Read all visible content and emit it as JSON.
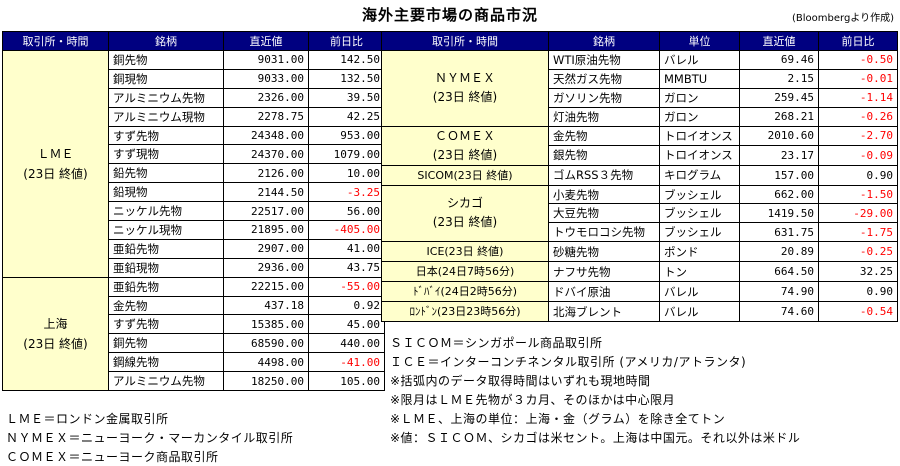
{
  "title": "海外主要市場の商品市況",
  "source": "(Bloombergより作成)",
  "left_headers": [
    "取引所・時間",
    "銘柄",
    "直近値",
    "前日比"
  ],
  "right_headers": [
    "取引所・時間",
    "銘柄",
    "単位",
    "直近値",
    "前日比"
  ],
  "lme": {
    "group_label_1": "ＬＭＥ",
    "group_label_2": "(23日 終値)",
    "rows": [
      {
        "name": "銅先物",
        "value": "9031.00",
        "change": "142.50"
      },
      {
        "name": "銅現物",
        "value": "9033.00",
        "change": "132.50"
      },
      {
        "name": "アルミニウム先物",
        "value": "2326.00",
        "change": "39.50"
      },
      {
        "name": "アルミニウム現物",
        "value": "2278.75",
        "change": "42.25"
      },
      {
        "name": "すず先物",
        "value": "24348.00",
        "change": "953.00"
      },
      {
        "name": "すず現物",
        "value": "24370.00",
        "change": "1079.00"
      },
      {
        "name": "鉛先物",
        "value": "2126.00",
        "change": "10.00"
      },
      {
        "name": "鉛現物",
        "value": "2144.50",
        "change": "-3.25"
      },
      {
        "name": "ニッケル先物",
        "value": "22517.00",
        "change": "56.00"
      },
      {
        "name": "ニッケル現物",
        "value": "21895.00",
        "change": "-405.00"
      },
      {
        "name": "亜鉛先物",
        "value": "2907.00",
        "change": "41.00"
      },
      {
        "name": "亜鉛現物",
        "value": "2936.00",
        "change": "43.75"
      }
    ]
  },
  "shanghai": {
    "group_label_1": "上海",
    "group_label_2": "(23日 終値)",
    "rows": [
      {
        "name": "亜鉛先物",
        "value": "22215.00",
        "change": "-55.00"
      },
      {
        "name": "金先物",
        "value": "437.18",
        "change": "0.92"
      },
      {
        "name": "すず先物",
        "value": "15385.00",
        "change": "45.00"
      },
      {
        "name": "銅先物",
        "value": "68590.00",
        "change": "440.00"
      },
      {
        "name": "鋼線先物",
        "value": "4498.00",
        "change": "-41.00"
      },
      {
        "name": "アルミニウム先物",
        "value": "18250.00",
        "change": "105.00"
      }
    ]
  },
  "right": {
    "nymex_1": "ＮＹＭＥＸ",
    "nymex_2": "(23日 終値)",
    "comex_1": "ＣＯＭＥＸ",
    "comex_2": "(23日 終値)",
    "sicom": "SICOM(23日 終値)",
    "chicago_1": "シカゴ",
    "chicago_2": "(23日 終値)",
    "ice": "ICE(23日 終値)",
    "japan": "日本(24日7時56分)",
    "dubai": "ﾄﾞﾊﾞｲ(24日2時56分)",
    "london": "ﾛﾝﾄﾞﾝ(23日23時56分)",
    "rows": [
      {
        "name": "WTI原油先物",
        "unit": "バレル",
        "value": "69.46",
        "change": "-0.50"
      },
      {
        "name": "天然ガス先物",
        "unit": "MMBTU",
        "value": "2.15",
        "change": "-0.01"
      },
      {
        "name": "ガソリン先物",
        "unit": "ガロン",
        "value": "259.45",
        "change": "-1.14"
      },
      {
        "name": "灯油先物",
        "unit": "ガロン",
        "value": "268.21",
        "change": "-0.26"
      },
      {
        "name": "金先物",
        "unit": "トロイオンス",
        "value": "2010.60",
        "change": "-2.70"
      },
      {
        "name": "銀先物",
        "unit": "トロイオンス",
        "value": "23.17",
        "change": "-0.09"
      },
      {
        "name": "ゴムRSS３先物",
        "unit": "キログラム",
        "value": "157.00",
        "change": "0.90"
      },
      {
        "name": "小麦先物",
        "unit": "ブッシェル",
        "value": "662.00",
        "change": "-1.50"
      },
      {
        "name": "大豆先物",
        "unit": "ブッシェル",
        "value": "1419.50",
        "change": "-29.00"
      },
      {
        "name": "トウモロコシ先物",
        "unit": "ブッシェル",
        "value": "631.75",
        "change": "-1.75"
      },
      {
        "name": "砂糖先物",
        "unit": "ポンド",
        "value": "20.89",
        "change": "-0.25"
      },
      {
        "name": "ナフサ先物",
        "unit": "トン",
        "value": "664.50",
        "change": "32.25"
      },
      {
        "name": "ドバイ原油",
        "unit": "バレル",
        "value": "74.90",
        "change": "0.90"
      },
      {
        "name": "北海ブレント",
        "unit": "バレル",
        "value": "74.60",
        "change": "-0.54"
      }
    ]
  },
  "notes_right": [
    "ＳＩＣＯＭ＝シンガポール商品取引所",
    "ＩＣＥ＝インターコンチネンタル取引所 (アメリカ/アトランタ)",
    "※括弧内のデータ取得時間はいずれも現地時間",
    "※限月はＬＭＥ先物が３カ月、そのほかは中心限月",
    "※ＬＭＥ、上海の単位：上海・金（グラム）を除き全てトン",
    "※値：ＳＩＣＯＭ、シカゴは米セント。上海は中国元。それ以外は米ドル"
  ],
  "notes_left": [
    "ＬＭＥ＝ロンドン金属取引所",
    "ＮＹＭＥＸ＝ニューヨーク・マーカンタイル取引所",
    "ＣＯＭＥＸ＝ニューヨーク商品取引所"
  ],
  "colors": {
    "header_bg": "#000080",
    "group_bg": "#ffffcc",
    "negative": "#ff0000"
  }
}
